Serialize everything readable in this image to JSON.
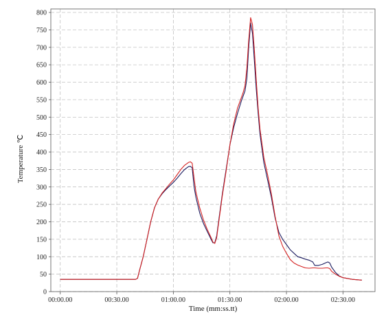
{
  "chart_data": {
    "type": "line",
    "title": "",
    "xlabel": "Time (mm:ss.tt)",
    "ylabel": "Temperature ℃",
    "ylim": [
      0,
      810
    ],
    "y_ticks": [
      0,
      50,
      100,
      150,
      200,
      250,
      300,
      350,
      400,
      450,
      500,
      550,
      600,
      650,
      700,
      750,
      800
    ],
    "x_ticks": [
      {
        "label": "00:00.00",
        "min": 0
      },
      {
        "label": "00:30.00",
        "min": 30
      },
      {
        "label": "01:00.00",
        "min": 60
      },
      {
        "label": "01:30.00",
        "min": 90
      },
      {
        "label": "02:00.00",
        "min": 120
      },
      {
        "label": "02:30.00",
        "min": 150
      }
    ],
    "xlim_min": [
      -5,
      167
    ],
    "grid": true,
    "legend": "none",
    "series": [
      {
        "color": "#1a1a5e",
        "x": [
          0,
          35,
          40,
          41,
          42,
          44,
          46,
          48,
          50,
          52,
          54,
          56,
          58,
          60,
          62,
          64,
          66,
          68,
          69,
          70,
          71,
          72,
          74,
          76,
          78,
          80,
          81,
          82,
          83,
          84,
          86,
          88,
          90,
          92,
          94,
          96,
          97,
          98,
          99,
          100,
          101,
          102,
          103,
          104,
          105,
          106,
          108,
          110,
          112,
          114,
          116,
          118,
          120,
          122,
          124,
          126,
          128,
          130,
          132,
          134,
          135,
          137,
          139,
          141,
          142,
          143,
          144,
          146,
          148,
          150,
          155,
          160
        ],
        "y": [
          35,
          35,
          35,
          38,
          60,
          100,
          150,
          200,
          240,
          265,
          280,
          292,
          303,
          313,
          325,
          338,
          350,
          358,
          359,
          355,
          300,
          270,
          225,
          195,
          172,
          150,
          140,
          140,
          160,
          200,
          280,
          350,
          420,
          470,
          510,
          545,
          560,
          575,
          610,
          700,
          770,
          740,
          660,
          580,
          510,
          450,
          370,
          320,
          270,
          210,
          170,
          150,
          135,
          120,
          110,
          100,
          97,
          93,
          90,
          85,
          75,
          75,
          78,
          83,
          85,
          82,
          70,
          55,
          45,
          40,
          35,
          33
        ]
      },
      {
        "color": "#d42020",
        "x": [
          0,
          35,
          40,
          41,
          42,
          44,
          46,
          48,
          50,
          52,
          54,
          56,
          58,
          60,
          62,
          64,
          66,
          68,
          69,
          70,
          71,
          72,
          74,
          76,
          78,
          80,
          81,
          82,
          83,
          84,
          86,
          88,
          90,
          92,
          94,
          96,
          97,
          98,
          99,
          100,
          101,
          102,
          103,
          104,
          105,
          106,
          108,
          110,
          112,
          114,
          116,
          118,
          120,
          122,
          124,
          126,
          128,
          130,
          132,
          134,
          135,
          137,
          139,
          141,
          142,
          143,
          144,
          146,
          148,
          150,
          155,
          160
        ],
        "y": [
          35,
          35,
          35,
          38,
          60,
          100,
          150,
          200,
          240,
          265,
          282,
          295,
          308,
          320,
          335,
          350,
          362,
          370,
          372,
          368,
          325,
          285,
          240,
          205,
          178,
          155,
          142,
          138,
          155,
          195,
          275,
          345,
          420,
          480,
          525,
          555,
          570,
          590,
          640,
          720,
          785,
          765,
          690,
          605,
          525,
          465,
          385,
          335,
          280,
          215,
          160,
          130,
          110,
          92,
          82,
          76,
          72,
          68,
          67,
          68,
          68,
          67,
          67,
          68,
          68,
          66,
          58,
          50,
          44,
          40,
          35,
          33
        ]
      }
    ]
  }
}
